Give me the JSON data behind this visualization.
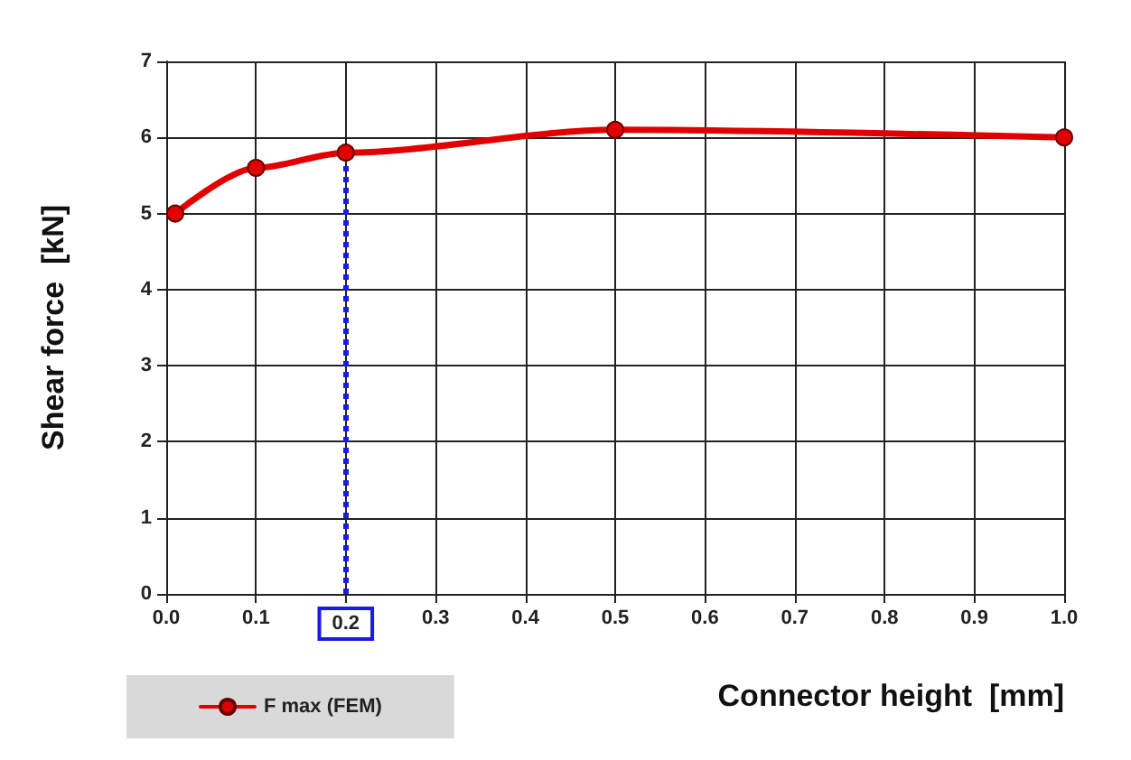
{
  "chart_data": {
    "type": "line",
    "xlabel": "Connector height  [mm]",
    "ylabel": "Shear force  [kN]",
    "x": [
      0.01,
      0.1,
      0.2,
      0.5,
      1.0
    ],
    "series": [
      {
        "name": "F max (FEM)",
        "color": "#e00000",
        "values": [
          5.0,
          5.6,
          5.8,
          6.1,
          6.0
        ]
      }
    ],
    "xlim": [
      0,
      1
    ],
    "xticks": [
      {
        "value": 0,
        "label": "0.0"
      },
      0.1,
      0.2,
      0.3,
      0.4,
      0.5,
      0.6,
      0.7,
      0.8,
      0.9,
      {
        "value": 1,
        "label": "1.0"
      }
    ],
    "ylim": [
      0,
      7
    ],
    "yticks": [
      0,
      1,
      2,
      3,
      4,
      5,
      6,
      7
    ],
    "ref_lines": [
      {
        "axis": "x",
        "value": 0.2,
        "color": "#1a1ae6",
        "line_style": "dotted"
      }
    ],
    "grid": true,
    "legend": "bottom left",
    "marker": "circle",
    "line_style": "solid"
  }
}
